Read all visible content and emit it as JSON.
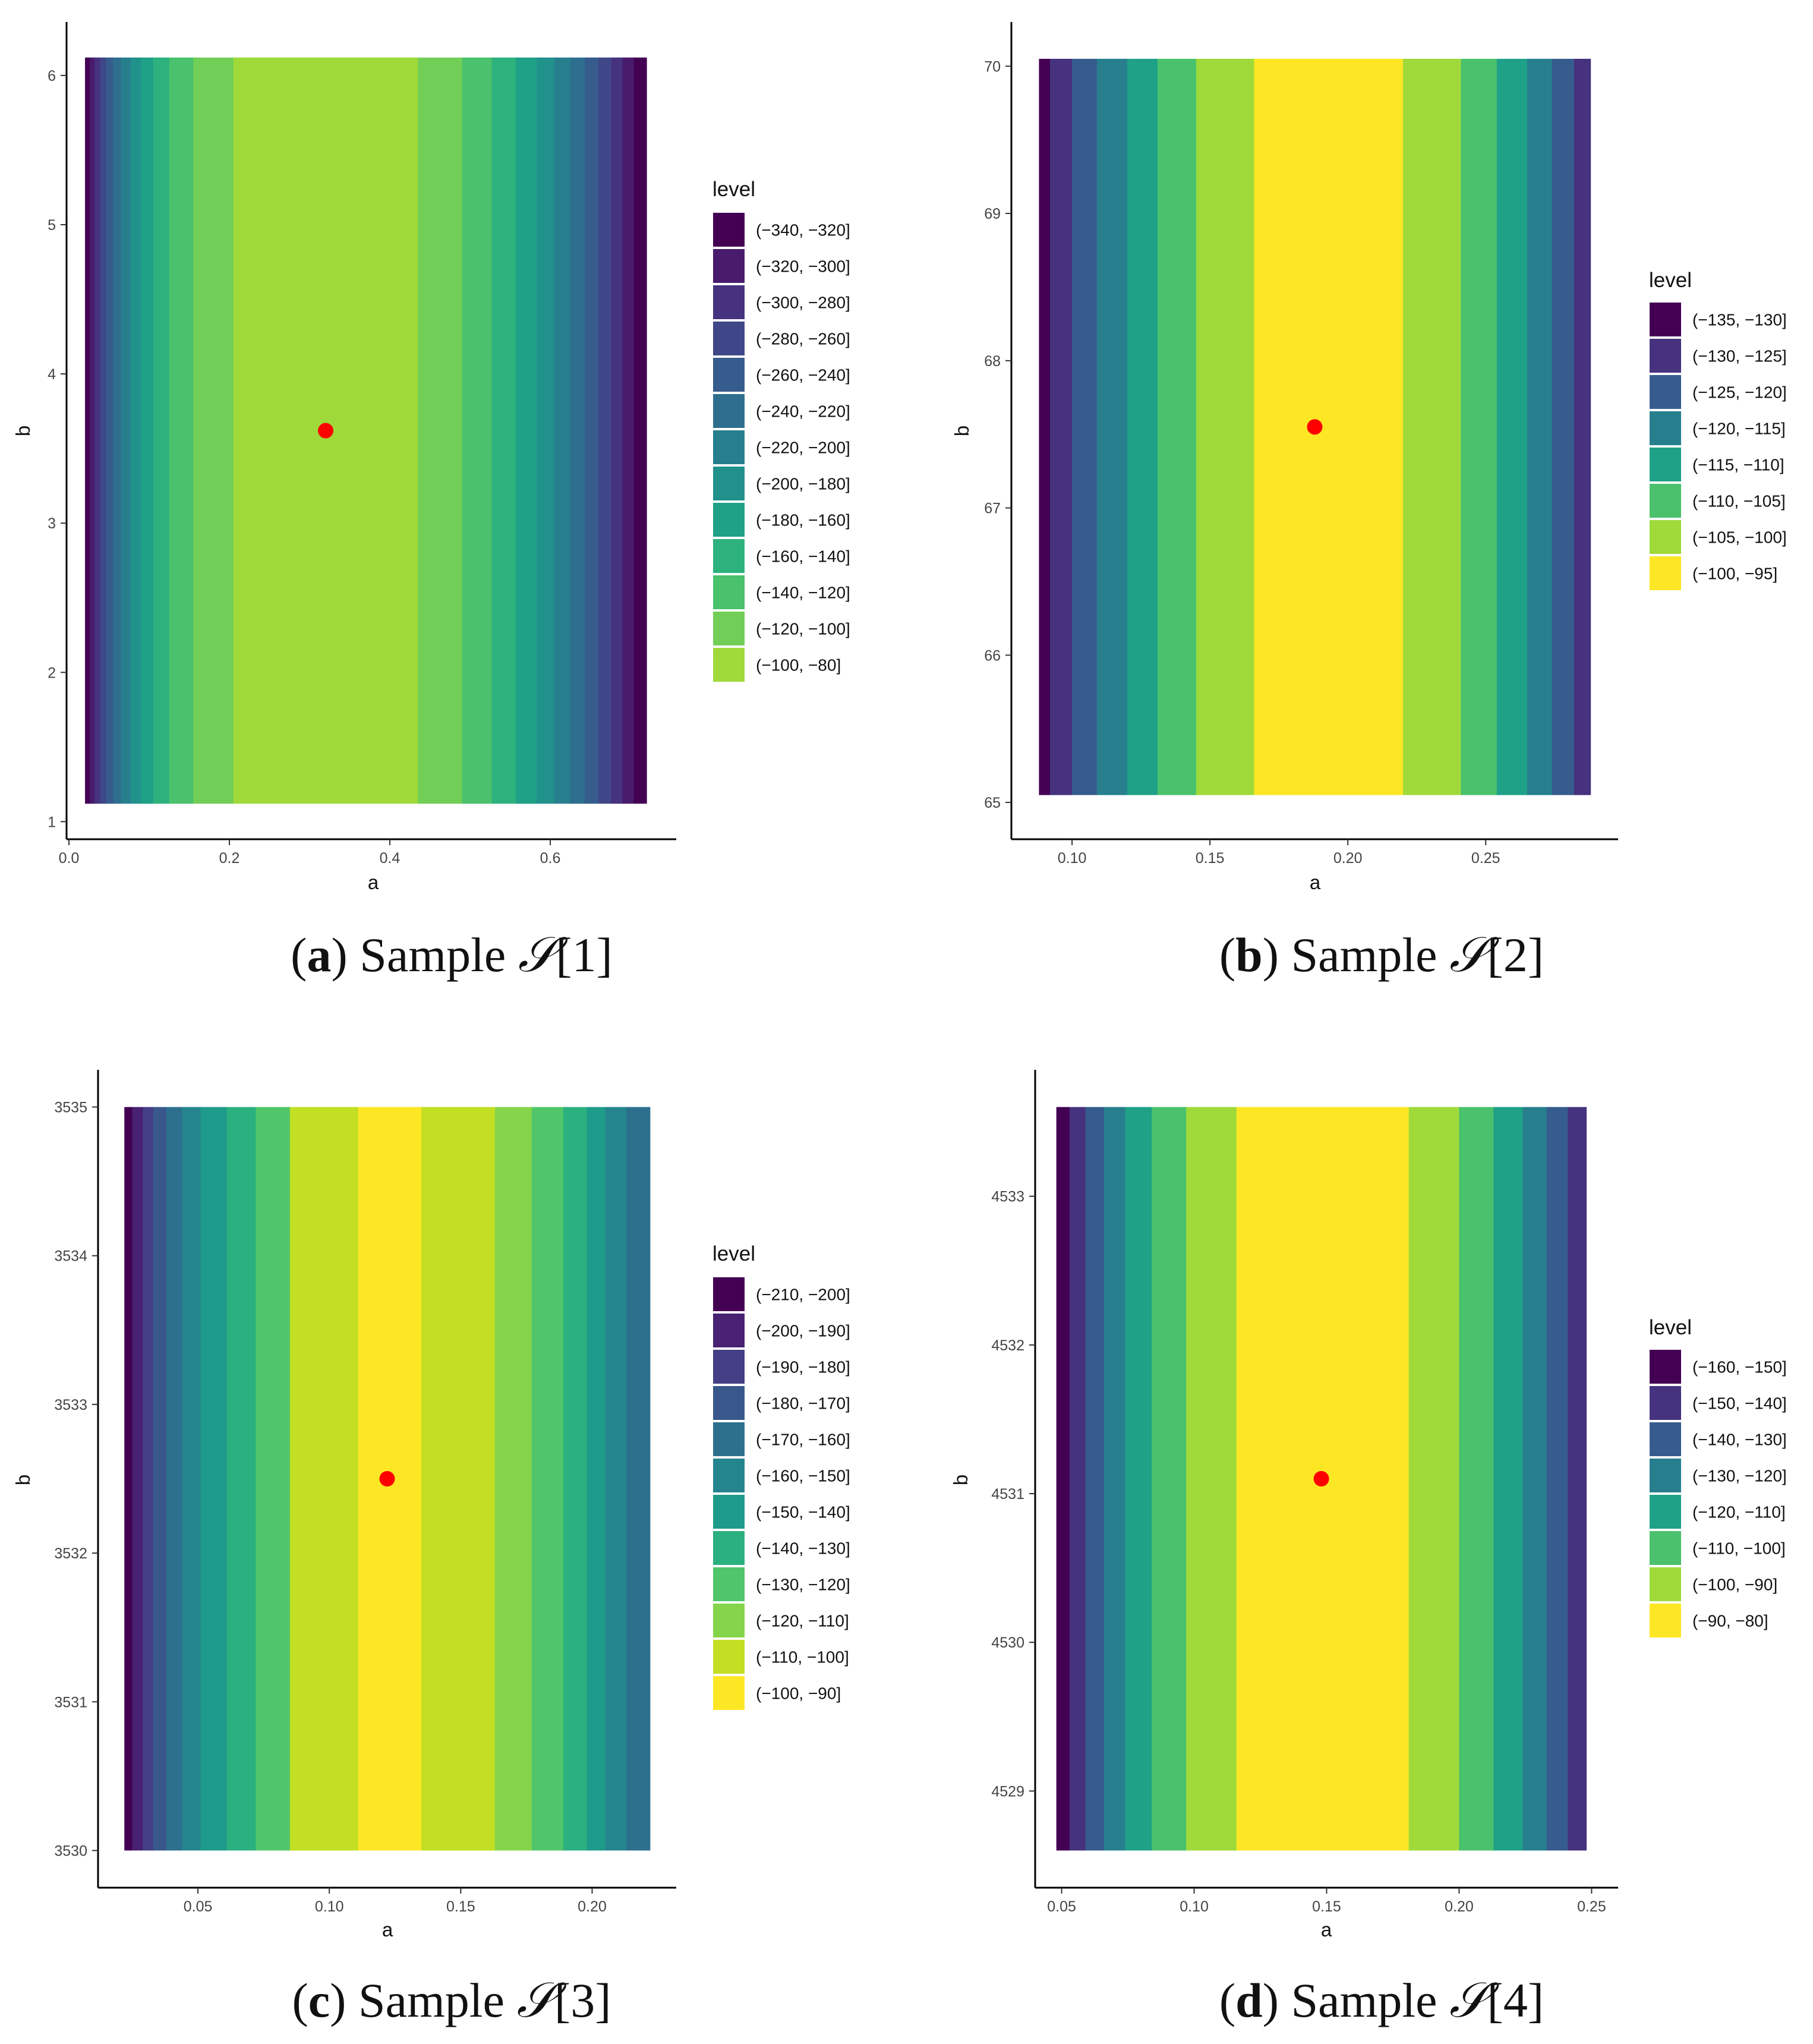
{
  "figure": {
    "background": "#ffffff",
    "point_color": "#ff0000"
  },
  "chart_data": [
    {
      "id": "a",
      "type": "heatmap",
      "caption": {
        "label": "a",
        "text": " Sample ",
        "symbol": "𝒮",
        "index": "[1]"
      },
      "xlabel": "a",
      "ylabel": "b",
      "xlim": [
        -0.003,
        0.757
      ],
      "ylim": [
        0.882,
        6.358
      ],
      "grid": false,
      "xticks": [
        {
          "value": 0.0,
          "label": "0.0"
        },
        {
          "value": 0.2,
          "label": "0.2"
        },
        {
          "value": 0.4,
          "label": "0.4"
        },
        {
          "value": 0.6,
          "label": "0.6"
        }
      ],
      "yticks": [
        {
          "value": 1,
          "label": "1"
        },
        {
          "value": 2,
          "label": "2"
        },
        {
          "value": 3,
          "label": "3"
        },
        {
          "value": 4,
          "label": "4"
        },
        {
          "value": 5,
          "label": "5"
        },
        {
          "value": 6,
          "label": "6"
        }
      ],
      "x_range": [
        0.02,
        0.72
      ],
      "y_range": [
        1.12,
        6.12
      ],
      "point": {
        "a": 0.32,
        "b": 3.62
      },
      "legend": {
        "title": "level",
        "position": "right",
        "entries": [
          {
            "label": "(−340, −320]",
            "color": "#440154"
          },
          {
            "label": "(−320, −300]",
            "color": "#481B6D"
          },
          {
            "label": "(−300, −280]",
            "color": "#46327E"
          },
          {
            "label": "(−280, −260]",
            "color": "#3F4788"
          },
          {
            "label": "(−260, −240]",
            "color": "#365C8D"
          },
          {
            "label": "(−240, −220]",
            "color": "#2E6E8E"
          },
          {
            "label": "(−220, −200]",
            "color": "#277F8E"
          },
          {
            "label": "(−200, −180]",
            "color": "#21918C"
          },
          {
            "label": "(−180, −160]",
            "color": "#1FA187"
          },
          {
            "label": "(−160, −140]",
            "color": "#2DB27D"
          },
          {
            "label": "(−140, −120]",
            "color": "#4AC16D"
          },
          {
            "label": "(−120, −100]",
            "color": "#71CF57"
          },
          {
            "label": "(−100, −80]",
            "color": "#9FDA3A"
          }
        ]
      },
      "bands": [
        {
          "from": 0.02,
          "to": 0.026,
          "level": "(−340, −320]"
        },
        {
          "from": 0.026,
          "to": 0.032,
          "level": "(−320, −300]"
        },
        {
          "from": 0.032,
          "to": 0.039,
          "level": "(−300, −280]"
        },
        {
          "from": 0.039,
          "to": 0.046,
          "level": "(−280, −260]"
        },
        {
          "from": 0.046,
          "to": 0.055,
          "level": "(−260, −240]"
        },
        {
          "from": 0.055,
          "to": 0.065,
          "level": "(−240, −220]"
        },
        {
          "from": 0.065,
          "to": 0.077,
          "level": "(−220, −200]"
        },
        {
          "from": 0.077,
          "to": 0.09,
          "level": "(−200, −180]"
        },
        {
          "from": 0.09,
          "to": 0.105,
          "level": "(−180, −160]"
        },
        {
          "from": 0.105,
          "to": 0.125,
          "level": "(−160, −140]"
        },
        {
          "from": 0.125,
          "to": 0.155,
          "level": "(−140, −120]"
        },
        {
          "from": 0.155,
          "to": 0.205,
          "level": "(−120, −100]"
        },
        {
          "from": 0.205,
          "to": 0.435,
          "level": "(−100, −80]"
        },
        {
          "from": 0.435,
          "to": 0.49,
          "level": "(−120, −100]"
        },
        {
          "from": 0.49,
          "to": 0.527,
          "level": "(−140, −120]"
        },
        {
          "from": 0.527,
          "to": 0.557,
          "level": "(−160, −140]"
        },
        {
          "from": 0.557,
          "to": 0.583,
          "level": "(−180, −160]"
        },
        {
          "from": 0.583,
          "to": 0.605,
          "level": "(−200, −180]"
        },
        {
          "from": 0.605,
          "to": 0.625,
          "level": "(−220, −200]"
        },
        {
          "from": 0.625,
          "to": 0.643,
          "level": "(−240, −220]"
        },
        {
          "from": 0.643,
          "to": 0.66,
          "level": "(−260, −240]"
        },
        {
          "from": 0.66,
          "to": 0.676,
          "level": "(−280, −260]"
        },
        {
          "from": 0.676,
          "to": 0.69,
          "level": "(−300, −280]"
        },
        {
          "from": 0.69,
          "to": 0.704,
          "level": "(−320, −300]"
        },
        {
          "from": 0.704,
          "to": 0.72,
          "level": "(−340, −320]"
        }
      ]
    },
    {
      "id": "b",
      "type": "heatmap",
      "caption": {
        "label": "b",
        "text": " Sample ",
        "symbol": "𝒮",
        "index": "[2]"
      },
      "xlabel": "a",
      "ylabel": "b",
      "xlim": [
        0.078,
        0.298
      ],
      "ylim": [
        64.75,
        70.3
      ],
      "grid": false,
      "xticks": [
        {
          "value": 0.1,
          "label": "0.10"
        },
        {
          "value": 0.15,
          "label": "0.15"
        },
        {
          "value": 0.2,
          "label": "0.20"
        },
        {
          "value": 0.25,
          "label": "0.25"
        }
      ],
      "yticks": [
        {
          "value": 65,
          "label": "65"
        },
        {
          "value": 66,
          "label": "66"
        },
        {
          "value": 67,
          "label": "67"
        },
        {
          "value": 68,
          "label": "68"
        },
        {
          "value": 69,
          "label": "69"
        },
        {
          "value": 70,
          "label": "70"
        }
      ],
      "x_range": [
        0.088,
        0.288
      ],
      "y_range": [
        65.05,
        70.05
      ],
      "point": {
        "a": 0.188,
        "b": 67.55
      },
      "legend": {
        "title": "level",
        "position": "right",
        "entries": [
          {
            "label": "(−135, −130]",
            "color": "#440154"
          },
          {
            "label": "(−130, −125]",
            "color": "#46327E"
          },
          {
            "label": "(−125, −120]",
            "color": "#365C8D"
          },
          {
            "label": "(−120, −115]",
            "color": "#277F8E"
          },
          {
            "label": "(−115, −110]",
            "color": "#1FA187"
          },
          {
            "label": "(−110, −105]",
            "color": "#4AC16D"
          },
          {
            "label": "(−105, −100]",
            "color": "#9FDA3A"
          },
          {
            "label": "(−100, −95]",
            "color": "#FDE725"
          }
        ]
      },
      "bands": [
        {
          "from": 0.088,
          "to": 0.092,
          "level": "(−135, −130]"
        },
        {
          "from": 0.092,
          "to": 0.1,
          "level": "(−130, −125]"
        },
        {
          "from": 0.1,
          "to": 0.109,
          "level": "(−125, −120]"
        },
        {
          "from": 0.109,
          "to": 0.12,
          "level": "(−120, −115]"
        },
        {
          "from": 0.12,
          "to": 0.131,
          "level": "(−115, −110]"
        },
        {
          "from": 0.131,
          "to": 0.145,
          "level": "(−110, −105]"
        },
        {
          "from": 0.145,
          "to": 0.166,
          "level": "(−105, −100]"
        },
        {
          "from": 0.166,
          "to": 0.22,
          "level": "(−100, −95]"
        },
        {
          "from": 0.22,
          "to": 0.241,
          "level": "(−105, −100]"
        },
        {
          "from": 0.241,
          "to": 0.254,
          "level": "(−110, −105]"
        },
        {
          "from": 0.254,
          "to": 0.265,
          "level": "(−115, −110]"
        },
        {
          "from": 0.265,
          "to": 0.274,
          "level": "(−120, −115]"
        },
        {
          "from": 0.274,
          "to": 0.282,
          "level": "(−125, −120]"
        },
        {
          "from": 0.282,
          "to": 0.288,
          "level": "(−130, −125]"
        }
      ]
    },
    {
      "id": "c",
      "type": "heatmap",
      "caption": {
        "label": "c",
        "text": " Sample ",
        "symbol": "𝒮",
        "index": "[3]"
      },
      "xlabel": "a",
      "ylabel": "b",
      "xlim": [
        0.012,
        0.232
      ],
      "ylim": [
        3529.75,
        3535.25
      ],
      "grid": false,
      "xticks": [
        {
          "value": 0.05,
          "label": "0.05"
        },
        {
          "value": 0.1,
          "label": "0.10"
        },
        {
          "value": 0.15,
          "label": "0.15"
        },
        {
          "value": 0.2,
          "label": "0.20"
        }
      ],
      "yticks": [
        {
          "value": 3530,
          "label": "3530"
        },
        {
          "value": 3531,
          "label": "3531"
        },
        {
          "value": 3532,
          "label": "3532"
        },
        {
          "value": 3533,
          "label": "3533"
        },
        {
          "value": 3534,
          "label": "3534"
        },
        {
          "value": 3535,
          "label": "3535"
        }
      ],
      "x_range": [
        0.022,
        0.222
      ],
      "y_range": [
        3530,
        3535
      ],
      "point": {
        "a": 0.122,
        "b": 3532.5
      },
      "legend": {
        "title": "level",
        "position": "right",
        "entries": [
          {
            "label": "(−210, −200]",
            "color": "#440154"
          },
          {
            "label": "(−200, −190]",
            "color": "#482173"
          },
          {
            "label": "(−190, −180]",
            "color": "#433E85"
          },
          {
            "label": "(−180, −170]",
            "color": "#38588C"
          },
          {
            "label": "(−170, −160]",
            "color": "#2D708E"
          },
          {
            "label": "(−160, −150]",
            "color": "#25858E"
          },
          {
            "label": "(−150, −140]",
            "color": "#1E9B8A"
          },
          {
            "label": "(−140, −130]",
            "color": "#2BB07F"
          },
          {
            "label": "(−130, −120]",
            "color": "#51C56A"
          },
          {
            "label": "(−120, −110]",
            "color": "#85D54A"
          },
          {
            "label": "(−110, −100]",
            "color": "#C2DF23"
          },
          {
            "label": "(−100, −90]",
            "color": "#FDE725"
          }
        ]
      },
      "bands": [
        {
          "from": 0.022,
          "to": 0.025,
          "level": "(−210, −200]"
        },
        {
          "from": 0.025,
          "to": 0.029,
          "level": "(−200, −190]"
        },
        {
          "from": 0.029,
          "to": 0.033,
          "level": "(−190, −180]"
        },
        {
          "from": 0.033,
          "to": 0.038,
          "level": "(−180, −170]"
        },
        {
          "from": 0.038,
          "to": 0.044,
          "level": "(−170, −160]"
        },
        {
          "from": 0.044,
          "to": 0.051,
          "level": "(−160, −150]"
        },
        {
          "from": 0.051,
          "to": 0.061,
          "level": "(−150, −140]"
        },
        {
          "from": 0.061,
          "to": 0.072,
          "level": "(−140, −130]"
        },
        {
          "from": 0.072,
          "to": 0.085,
          "level": "(−130, −120]"
        },
        {
          "from": 0.085,
          "to": 0.111,
          "level": "(−110, −100]"
        },
        {
          "from": 0.111,
          "to": 0.135,
          "level": "(−100, −90]"
        },
        {
          "from": 0.135,
          "to": 0.163,
          "level": "(−110, −100]"
        },
        {
          "from": 0.163,
          "to": 0.177,
          "level": "(−120, −110]"
        },
        {
          "from": 0.177,
          "to": 0.189,
          "level": "(−130, −120]"
        },
        {
          "from": 0.189,
          "to": 0.198,
          "level": "(−140, −130]"
        },
        {
          "from": 0.198,
          "to": 0.205,
          "level": "(−150, −140]"
        },
        {
          "from": 0.205,
          "to": 0.213,
          "level": "(−160, −150]"
        },
        {
          "from": 0.213,
          "to": 0.222,
          "level": "(−170, −160]"
        }
      ]
    },
    {
      "id": "d",
      "type": "heatmap",
      "caption": {
        "label": "d",
        "text": " Sample ",
        "symbol": "𝒮",
        "index": "[4]"
      },
      "xlabel": "a",
      "ylabel": "b",
      "xlim": [
        0.04,
        0.26
      ],
      "ylim": [
        4528.35,
        4533.85
      ],
      "grid": false,
      "xticks": [
        {
          "value": 0.05,
          "label": "0.05"
        },
        {
          "value": 0.1,
          "label": "0.10"
        },
        {
          "value": 0.15,
          "label": "0.15"
        },
        {
          "value": 0.2,
          "label": "0.20"
        },
        {
          "value": 0.25,
          "label": "0.25"
        }
      ],
      "yticks": [
        {
          "value": 4529,
          "label": "4529"
        },
        {
          "value": 4530,
          "label": "4530"
        },
        {
          "value": 4531,
          "label": "4531"
        },
        {
          "value": 4532,
          "label": "4532"
        },
        {
          "value": 4533,
          "label": "4533"
        }
      ],
      "x_range": [
        0.048,
        0.248
      ],
      "y_range": [
        4528.6,
        4533.6
      ],
      "point": {
        "a": 0.148,
        "b": 4531.1
      },
      "legend": {
        "title": "level",
        "position": "right",
        "entries": [
          {
            "label": "(−160, −150]",
            "color": "#440154"
          },
          {
            "label": "(−150, −140]",
            "color": "#46337F"
          },
          {
            "label": "(−140, −130]",
            "color": "#365C8D"
          },
          {
            "label": "(−130, −120]",
            "color": "#277F8E"
          },
          {
            "label": "(−120, −110]",
            "color": "#1FA187"
          },
          {
            "label": "(−110, −100]",
            "color": "#4AC16D"
          },
          {
            "label": "(−100, −90]",
            "color": "#9FDA3A"
          },
          {
            "label": "(−90, −80]",
            "color": "#FDE725"
          }
        ]
      },
      "bands": [
        {
          "from": 0.048,
          "to": 0.053,
          "level": "(−160, −150]"
        },
        {
          "from": 0.053,
          "to": 0.059,
          "level": "(−150, −140]"
        },
        {
          "from": 0.059,
          "to": 0.066,
          "level": "(−140, −130]"
        },
        {
          "from": 0.066,
          "to": 0.074,
          "level": "(−130, −120]"
        },
        {
          "from": 0.074,
          "to": 0.084,
          "level": "(−120, −110]"
        },
        {
          "from": 0.084,
          "to": 0.097,
          "level": "(−110, −100]"
        },
        {
          "from": 0.097,
          "to": 0.116,
          "level": "(−100, −90]"
        },
        {
          "from": 0.116,
          "to": 0.181,
          "level": "(−90, −80]"
        },
        {
          "from": 0.181,
          "to": 0.2,
          "level": "(−100, −90]"
        },
        {
          "from": 0.2,
          "to": 0.213,
          "level": "(−110, −100]"
        },
        {
          "from": 0.213,
          "to": 0.224,
          "level": "(−120, −110]"
        },
        {
          "from": 0.224,
          "to": 0.233,
          "level": "(−130, −120]"
        },
        {
          "from": 0.233,
          "to": 0.241,
          "level": "(−140, −130]"
        },
        {
          "from": 0.241,
          "to": 0.248,
          "level": "(−150, −140]"
        }
      ]
    }
  ]
}
